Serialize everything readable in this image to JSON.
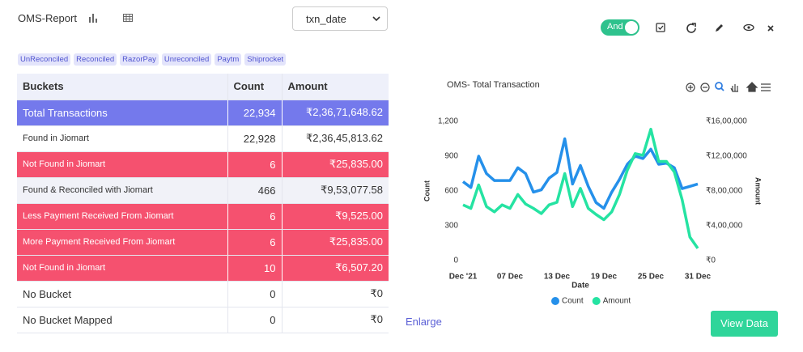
{
  "header": {
    "title": "OMS-Report",
    "select": "txn_date",
    "toggle": "And"
  },
  "tags": [
    "UnReconciled",
    "Reconciled",
    "RazorPay",
    "Unreconciled",
    "Paytm",
    "Shiprocket"
  ],
  "table": {
    "columns": [
      "Buckets",
      "Count",
      "Amount"
    ],
    "rows": [
      [
        "Total Transactions",
        "22,934",
        "₹2,36,71,648.62"
      ],
      [
        "Found in Jiomart",
        "22,928",
        "₹2,36,45,813.62"
      ],
      [
        "Not Found in Jiomart",
        "6",
        "₹25,835.00"
      ],
      [
        "Found & Reconciled with Jiomart",
        "466",
        "₹9,53,077.58"
      ],
      [
        "Less Payment Received From Jiomart",
        "6",
        "₹9,525.00"
      ],
      [
        "More Payment Received From Jiomart",
        "6",
        "₹25,835.00"
      ],
      [
        "Not Found in Jiomart",
        "10",
        "₹6,507.20"
      ],
      [
        "No Bucket",
        "0",
        "₹0"
      ],
      [
        "No Bucket Mapped",
        "0",
        "₹0"
      ]
    ]
  },
  "chart_data": {
    "type": "line",
    "title": "OMS- Total Transaction",
    "x": [
      "2021-12-01",
      "2021-12-02",
      "2021-12-03",
      "2021-12-04",
      "2021-12-05",
      "2021-12-06",
      "2021-12-07",
      "2021-12-08",
      "2021-12-09",
      "2021-12-10",
      "2021-12-11",
      "2021-12-12",
      "2021-12-13",
      "2021-12-14",
      "2021-12-15",
      "2021-12-16",
      "2021-12-17",
      "2021-12-18",
      "2021-12-19",
      "2021-12-20",
      "2021-12-21",
      "2021-12-22",
      "2021-12-23",
      "2021-12-24",
      "2021-12-25",
      "2021-12-26",
      "2021-12-27",
      "2021-12-28",
      "2021-12-29",
      "2021-12-30",
      "2021-12-31"
    ],
    "series": [
      {
        "name": "Count",
        "color": "#2590ea",
        "axis": "y",
        "values": [
          680,
          630,
          900,
          750,
          690,
          690,
          690,
          800,
          750,
          590,
          610,
          710,
          760,
          1050,
          660,
          820,
          640,
          500,
          450,
          590,
          700,
          830,
          900,
          880,
          960,
          830,
          840,
          800,
          620,
          640,
          660
        ]
      },
      {
        "name": "Amount",
        "color": "#25e3a2",
        "axis": "y2",
        "values": [
          640000,
          600000,
          870000,
          620000,
          560000,
          640000,
          600000,
          760000,
          650000,
          600000,
          540000,
          640000,
          670000,
          1000000,
          620000,
          830000,
          600000,
          530000,
          470000,
          560000,
          760000,
          1040000,
          1230000,
          1210000,
          1510000,
          1140000,
          1140000,
          1020000,
          700000,
          270000,
          140000
        ]
      }
    ],
    "xlim": [
      "2021-12-01",
      "2021-12-31"
    ],
    "xticks": [
      {
        "value": "2021-12-01",
        "label": "Dec '21"
      },
      {
        "value": "2021-12-07",
        "label": "07 Dec"
      },
      {
        "value": "2021-12-13",
        "label": "13 Dec"
      },
      {
        "value": "2021-12-19",
        "label": "19 Dec"
      },
      {
        "value": "2021-12-25",
        "label": "25 Dec"
      },
      {
        "value": "2021-12-31",
        "label": "31 Dec"
      }
    ],
    "ylim": [
      0,
      1200
    ],
    "yticks": [
      0,
      300,
      600,
      900,
      {
        "value": 1200,
        "label": "1,200"
      }
    ],
    "y2lim": [
      0,
      1600000
    ],
    "y2ticks": [
      {
        "value": 0,
        "label": "₹0"
      },
      {
        "value": 400000,
        "label": "₹4,00,000"
      },
      {
        "value": 800000,
        "label": "₹8,00,000"
      },
      {
        "value": 1200000,
        "label": "₹12,00,000"
      },
      {
        "value": 1600000,
        "label": "₹16,00,000"
      }
    ],
    "xlabel": "Date",
    "ylabel": "Count",
    "y2label": "Amount",
    "grid": false,
    "legend": "bottom"
  },
  "enlarge": "Enlarge",
  "button": "View Data"
}
